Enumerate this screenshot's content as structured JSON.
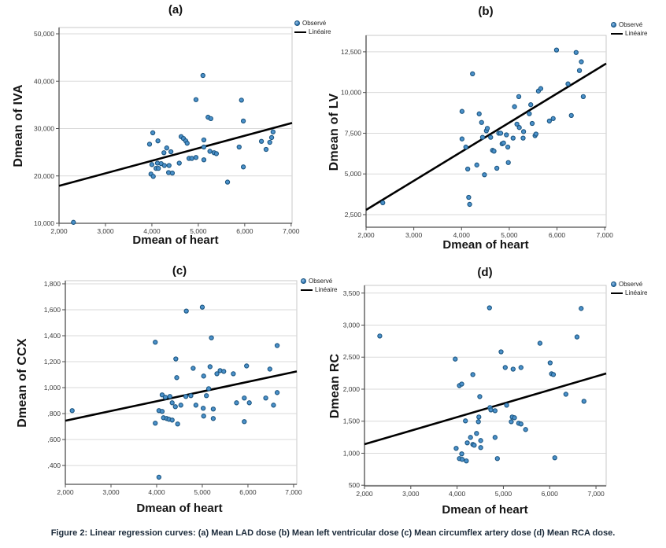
{
  "figure": {
    "caption": "Figure 2: Linear regression curves: (a) Mean LAD dose (b) Mean left ventricular dose (c) Mean circumflex artery dose (d) Mean RCA dose."
  },
  "colors": {
    "point_fill": "#4a90c9",
    "point_edge": "#1a547f",
    "line": "#000000",
    "grid": "#d9d9d9",
    "axis": "#4d4d4d",
    "frame": "#c9c9c9",
    "tick_text": "#3a3a3a",
    "caption_text": "#1b2a3a"
  },
  "chart_data": [
    {
      "id": "a",
      "type": "scatter",
      "title": "(a)",
      "xlabel": "Dmean of heart",
      "ylabel": "Dmean of IVA",
      "legend": {
        "observed": "Observé",
        "linear": "Linéaire",
        "position": "top-right-outside"
      },
      "grid": "horizontal-only",
      "xlim": [
        2000,
        7020
      ],
      "ylim": [
        10000,
        51330
      ],
      "xticks": {
        "values": [
          2000,
          3000,
          4000,
          5000,
          6000,
          7000
        ],
        "labels": [
          "2,000",
          "3,000",
          "4,000",
          "5,000",
          "6,000",
          "7,000"
        ]
      },
      "yticks": {
        "values": [
          10000,
          20000,
          30000,
          40000,
          50000
        ],
        "labels": [
          "10,000",
          "20,000",
          "30,000",
          "40,000",
          "50,000"
        ]
      },
      "regression_line": {
        "x": [
          2000,
          7020
        ],
        "y": [
          17900,
          31190
        ]
      },
      "points": [
        [
          2310,
          10200
        ],
        [
          3950,
          26700
        ],
        [
          3980,
          20400
        ],
        [
          4000,
          22400
        ],
        [
          4020,
          29100
        ],
        [
          4030,
          19900
        ],
        [
          4090,
          21600
        ],
        [
          4120,
          22700
        ],
        [
          4130,
          27400
        ],
        [
          4140,
          21600
        ],
        [
          4200,
          22600
        ],
        [
          4260,
          24900
        ],
        [
          4270,
          22200
        ],
        [
          4320,
          25900
        ],
        [
          4360,
          20700
        ],
        [
          4370,
          22200
        ],
        [
          4410,
          25100
        ],
        [
          4440,
          20600
        ],
        [
          4590,
          22700
        ],
        [
          4630,
          28300
        ],
        [
          4680,
          27900
        ],
        [
          4730,
          27400
        ],
        [
          4760,
          26900
        ],
        [
          4800,
          23700
        ],
        [
          4860,
          23700
        ],
        [
          4950,
          23900
        ],
        [
          4950,
          36100
        ],
        [
          5100,
          41200
        ],
        [
          5120,
          23400
        ],
        [
          5120,
          26100
        ],
        [
          5120,
          27600
        ],
        [
          5210,
          32400
        ],
        [
          5250,
          25200
        ],
        [
          5270,
          32100
        ],
        [
          5340,
          24900
        ],
        [
          5390,
          24700
        ],
        [
          5630,
          18700
        ],
        [
          5880,
          26100
        ],
        [
          5930,
          36000
        ],
        [
          5970,
          31600
        ],
        [
          5970,
          21900
        ],
        [
          6360,
          27300
        ],
        [
          6460,
          25600
        ],
        [
          6540,
          27100
        ],
        [
          6580,
          28100
        ],
        [
          6610,
          29300
        ]
      ]
    },
    {
      "id": "b",
      "type": "scatter",
      "title": "(b)",
      "xlabel": "Dmean of heart",
      "ylabel": "Dmean of LV",
      "legend": {
        "observed": "Observé",
        "linear": "Linéaire",
        "position": "top-right-outside"
      },
      "grid": "horizontal-only",
      "xlim": [
        2000,
        7030
      ],
      "ylim": [
        1726,
        13510
      ],
      "xticks": {
        "values": [
          2000,
          3000,
          4000,
          5000,
          6000,
          7000
        ],
        "labels": [
          "2,000",
          "3,000",
          "4,000",
          "5,000",
          "6,000",
          "7,000"
        ]
      },
      "yticks": {
        "values": [
          2500,
          5000,
          7500,
          10000,
          12500
        ],
        "labels": [
          "2,500",
          "5,000",
          "7,500",
          "10,000",
          "12,500"
        ]
      },
      "regression_line": {
        "x": [
          2000,
          7030
        ],
        "y": [
          2790,
          11780
        ]
      },
      "points": [
        [
          2350,
          3230
        ],
        [
          4010,
          7150
        ],
        [
          4010,
          8840
        ],
        [
          4090,
          6650
        ],
        [
          4130,
          5300
        ],
        [
          4150,
          3560
        ],
        [
          4170,
          3130
        ],
        [
          4230,
          11150
        ],
        [
          4320,
          5550
        ],
        [
          4370,
          8690
        ],
        [
          4420,
          8160
        ],
        [
          4440,
          7250
        ],
        [
          4480,
          4950
        ],
        [
          4520,
          7650
        ],
        [
          4540,
          7800
        ],
        [
          4610,
          7250
        ],
        [
          4650,
          6450
        ],
        [
          4680,
          6400
        ],
        [
          4740,
          5350
        ],
        [
          4780,
          7500
        ],
        [
          4820,
          7500
        ],
        [
          4850,
          6850
        ],
        [
          4880,
          6900
        ],
        [
          4940,
          7400
        ],
        [
          4970,
          6650
        ],
        [
          4980,
          5700
        ],
        [
          5080,
          7200
        ],
        [
          5110,
          9130
        ],
        [
          5160,
          8060
        ],
        [
          5200,
          9750
        ],
        [
          5210,
          7850
        ],
        [
          5290,
          7200
        ],
        [
          5300,
          7600
        ],
        [
          5420,
          8700
        ],
        [
          5450,
          9250
        ],
        [
          5480,
          8100
        ],
        [
          5540,
          7350
        ],
        [
          5560,
          7450
        ],
        [
          5610,
          10090
        ],
        [
          5660,
          10240
        ],
        [
          5840,
          8250
        ],
        [
          5920,
          8400
        ],
        [
          5990,
          12610
        ],
        [
          6230,
          10530
        ],
        [
          6300,
          8590
        ],
        [
          6400,
          12460
        ],
        [
          6470,
          11350
        ],
        [
          6510,
          11890
        ],
        [
          6550,
          9750
        ]
      ]
    },
    {
      "id": "c",
      "type": "scatter",
      "title": "(c)",
      "xlabel": "Dmean of heart",
      "ylabel": "Dmean of CCX",
      "legend": {
        "observed": "Observé",
        "linear": "Linéaire",
        "position": "top-right-outside"
      },
      "grid": "horizontal-only",
      "xlim": [
        2000,
        7070
      ],
      "ylim": [
        255,
        1824
      ],
      "xticks": {
        "values": [
          2000,
          3000,
          4000,
          5000,
          6000,
          7000
        ],
        "labels": [
          "2,000",
          "3,000",
          "4,000",
          "5,000",
          "6,000",
          "7,000"
        ]
      },
      "yticks": {
        "values": [
          400,
          600,
          800,
          1000,
          1200,
          1400,
          1600,
          1800
        ],
        "labels": [
          ",400",
          ",600",
          ",800",
          "1,000",
          "1,200",
          "1,400",
          "1,600",
          "1,800"
        ]
      },
      "regression_line": {
        "x": [
          2000,
          7070
        ],
        "y": [
          745,
          1125
        ]
      },
      "points": [
        [
          2150,
          823
        ],
        [
          3970,
          1350
        ],
        [
          3970,
          726
        ],
        [
          4050,
          823
        ],
        [
          4050,
          310
        ],
        [
          4120,
          817
        ],
        [
          4120,
          944
        ],
        [
          4150,
          768
        ],
        [
          4190,
          926
        ],
        [
          4220,
          762
        ],
        [
          4270,
          756
        ],
        [
          4290,
          932
        ],
        [
          4340,
          883
        ],
        [
          4340,
          750
        ],
        [
          4410,
          853
        ],
        [
          4420,
          1221
        ],
        [
          4440,
          1077
        ],
        [
          4460,
          720
        ],
        [
          4530,
          865
        ],
        [
          4640,
          932
        ],
        [
          4650,
          1590
        ],
        [
          4750,
          938
        ],
        [
          4800,
          1149
        ],
        [
          4860,
          865
        ],
        [
          5000,
          1620
        ],
        [
          5020,
          841
        ],
        [
          5030,
          781
        ],
        [
          5030,
          1089
        ],
        [
          5090,
          938
        ],
        [
          5140,
          992
        ],
        [
          5170,
          1161
        ],
        [
          5200,
          1384
        ],
        [
          5240,
          835
        ],
        [
          5240,
          762
        ],
        [
          5320,
          1107
        ],
        [
          5390,
          1131
        ],
        [
          5470,
          1125
        ],
        [
          5680,
          1107
        ],
        [
          5750,
          883
        ],
        [
          5920,
          738
        ],
        [
          5920,
          920
        ],
        [
          5970,
          1167
        ],
        [
          6030,
          883
        ],
        [
          6390,
          920
        ],
        [
          6480,
          1143
        ],
        [
          6560,
          865
        ],
        [
          6640,
          962
        ],
        [
          6640,
          1324
        ]
      ]
    },
    {
      "id": "d",
      "type": "scatter",
      "title": "(d)",
      "xlabel": "Dmean of heart",
      "ylabel": "Dmean RC",
      "legend": {
        "observed": "Observé",
        "linear": "Linéaire",
        "position": "top-right-outside"
      },
      "grid": "horizontal-only",
      "xlim": [
        2000,
        7220
      ],
      "ylim": [
        490,
        3620
      ],
      "xticks": {
        "values": [
          2000,
          3000,
          4000,
          5000,
          6000,
          7000
        ],
        "labels": [
          "2,000",
          "3,000",
          "4,000",
          "5,000",
          "6,000",
          "7,000"
        ]
      },
      "yticks": {
        "values": [
          500,
          1000,
          1500,
          2000,
          2500,
          3000,
          3500
        ],
        "labels": [
          "500",
          "1,000",
          "1,500",
          "2,000",
          "2,500",
          "3,000",
          "3,500"
        ]
      },
      "regression_line": {
        "x": [
          2000,
          7220
        ],
        "y": [
          1140,
          2245
        ]
      },
      "points": [
        [
          2330,
          2830
        ],
        [
          3960,
          2470
        ],
        [
          3980,
          1076
        ],
        [
          4050,
          2056
        ],
        [
          4050,
          917
        ],
        [
          4100,
          2080
        ],
        [
          4100,
          990
        ],
        [
          4110,
          904
        ],
        [
          4180,
          1505
        ],
        [
          4200,
          880
        ],
        [
          4220,
          1162
        ],
        [
          4290,
          1247
        ],
        [
          4340,
          2228
        ],
        [
          4340,
          1137
        ],
        [
          4370,
          1125
        ],
        [
          4420,
          1309
        ],
        [
          4460,
          1492
        ],
        [
          4470,
          1566
        ],
        [
          4490,
          1884
        ],
        [
          4510,
          1198
        ],
        [
          4510,
          1088
        ],
        [
          4700,
          3270
        ],
        [
          4710,
          1713
        ],
        [
          4730,
          1676
        ],
        [
          4820,
          1664
        ],
        [
          4820,
          1247
        ],
        [
          4870,
          917
        ],
        [
          4950,
          2583
        ],
        [
          5040,
          2338
        ],
        [
          5070,
          1750
        ],
        [
          5170,
          1492
        ],
        [
          5190,
          1566
        ],
        [
          5210,
          2313
        ],
        [
          5240,
          1554
        ],
        [
          5330,
          1468
        ],
        [
          5380,
          2338
        ],
        [
          5380,
          1456
        ],
        [
          5480,
          1370
        ],
        [
          5790,
          2717
        ],
        [
          6010,
          2411
        ],
        [
          6040,
          2240
        ],
        [
          6080,
          2228
        ],
        [
          6110,
          929
        ],
        [
          6350,
          1921
        ],
        [
          6590,
          2815
        ],
        [
          6680,
          3260
        ],
        [
          6740,
          1811
        ]
      ]
    }
  ]
}
